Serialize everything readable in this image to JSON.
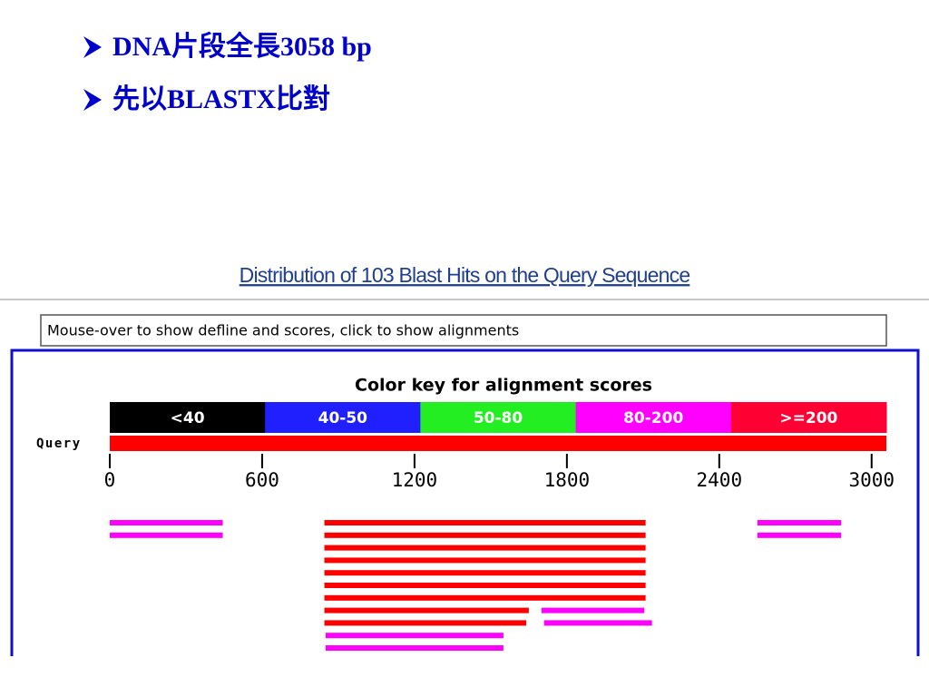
{
  "slide": {
    "bullets": [
      "DNA片段全長3058 bp",
      "先以BLASTX比對"
    ]
  },
  "blast": {
    "title": "Distribution of 103 Blast Hits on the Query Sequence",
    "input_text": "Mouse-over to show defline and scores, click to show alignments",
    "key_title": "Color key for alignment scores",
    "key": [
      {
        "label": "<40",
        "color": "#000000"
      },
      {
        "label": "40-50",
        "color": "#2020ff"
      },
      {
        "label": "50-80",
        "color": "#22ee22"
      },
      {
        "label": "80-200",
        "color": "#ff00ff"
      },
      {
        "label": ">=200",
        "color": "#ff0033"
      }
    ],
    "query_label": "Query",
    "query_color": "#ff0000",
    "xlim": [
      0,
      3058
    ],
    "xticks": [
      0,
      600,
      1200,
      1800,
      2400,
      3000
    ],
    "hits": [
      {
        "start": 0,
        "end": 445,
        "color": "#ff00ff",
        "row": 0
      },
      {
        "start": 2550,
        "end": 2880,
        "color": "#ff00ff",
        "row": 0
      },
      {
        "start": 0,
        "end": 445,
        "color": "#ff00ff",
        "row": 1
      },
      {
        "start": 2550,
        "end": 2880,
        "color": "#ff00ff",
        "row": 1
      },
      {
        "start": 845,
        "end": 2110,
        "color": "#ff0000",
        "row": 0
      },
      {
        "start": 845,
        "end": 2110,
        "color": "#ff0000",
        "row": 1
      },
      {
        "start": 845,
        "end": 2110,
        "color": "#ff0000",
        "row": 2
      },
      {
        "start": 845,
        "end": 2110,
        "color": "#ff0000",
        "row": 3
      },
      {
        "start": 845,
        "end": 2110,
        "color": "#ff0000",
        "row": 4
      },
      {
        "start": 845,
        "end": 2110,
        "color": "#ff0000",
        "row": 5
      },
      {
        "start": 845,
        "end": 2110,
        "color": "#ff0000",
        "row": 6
      },
      {
        "start": 845,
        "end": 1650,
        "color": "#ff0000",
        "row": 7
      },
      {
        "start": 1700,
        "end": 2105,
        "color": "#ff00ff",
        "row": 7
      },
      {
        "start": 845,
        "end": 1640,
        "color": "#ff0000",
        "row": 8
      },
      {
        "start": 1710,
        "end": 2135,
        "color": "#ff00ff",
        "row": 8
      },
      {
        "start": 850,
        "end": 1550,
        "color": "#ff00ff",
        "row": 9
      },
      {
        "start": 850,
        "end": 1550,
        "color": "#ff00ff",
        "row": 10
      }
    ]
  }
}
